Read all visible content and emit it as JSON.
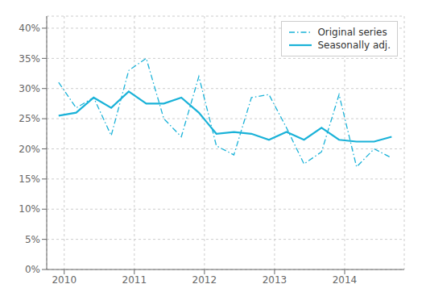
{
  "chart_data": {
    "type": "line",
    "x": [
      2009.92,
      2010.17,
      2010.42,
      2010.67,
      2010.92,
      2011.17,
      2011.42,
      2011.67,
      2011.92,
      2012.17,
      2012.42,
      2012.67,
      2012.92,
      2013.17,
      2013.42,
      2013.67,
      2013.92,
      2014.17,
      2014.42,
      2014.67
    ],
    "series": [
      {
        "name": "Original series",
        "color": "#1ab2d8",
        "line_style": "dashdot",
        "values": [
          0.31,
          0.268,
          0.285,
          0.222,
          0.33,
          0.35,
          0.25,
          0.22,
          0.32,
          0.205,
          0.19,
          0.285,
          0.29,
          0.235,
          0.175,
          0.195,
          0.29,
          0.17,
          0.2,
          0.185
        ]
      },
      {
        "name": "Seasonally adj.",
        "color": "#1ab2d8",
        "line_style": "solid",
        "values": [
          0.255,
          0.26,
          0.285,
          0.268,
          0.295,
          0.275,
          0.275,
          0.285,
          0.26,
          0.225,
          0.228,
          0.225,
          0.215,
          0.228,
          0.215,
          0.235,
          0.215,
          0.212,
          0.212,
          0.22
        ]
      }
    ],
    "xlim": [
      2009.75,
      2014.85
    ],
    "xticks": [
      2010,
      2011,
      2012,
      2013,
      2014
    ],
    "ylim": [
      0,
      0.42
    ],
    "yticks": [
      {
        "value": 0,
        "label": "0%"
      },
      {
        "value": 0.05,
        "label": "5%"
      },
      {
        "value": 0.1,
        "label": "10%"
      },
      {
        "value": 0.15,
        "label": "15%"
      },
      {
        "value": 0.2,
        "label": "20%"
      },
      {
        "value": 0.25,
        "label": "25%"
      },
      {
        "value": 0.3,
        "label": "30%"
      },
      {
        "value": 0.35,
        "label": "35%"
      },
      {
        "value": 0.4,
        "label": "40%"
      }
    ],
    "grid": true,
    "legend": "upper right"
  }
}
